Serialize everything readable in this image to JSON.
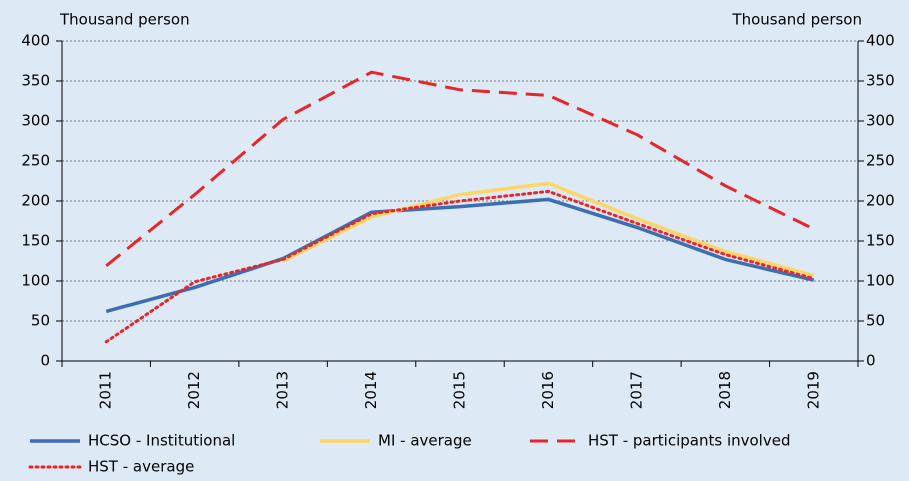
{
  "chart_data": {
    "type": "line",
    "ylabel": "Thousand person",
    "y2label": "Thousand person",
    "categories": [
      "2011",
      "2012",
      "2013",
      "2014",
      "2015",
      "2016",
      "2017",
      "2018",
      "2019"
    ],
    "series": [
      {
        "name": "HCSO - Institutional",
        "color": "#3c6eb4",
        "style": "solid",
        "values": [
          62,
          92,
          128,
          186,
          193,
          202,
          167,
          127,
          101
        ]
      },
      {
        "name": "MI - average",
        "color": "#ffd666",
        "style": "solid",
        "values": [
          null,
          null,
          125,
          180,
          208,
          222,
          178,
          137,
          107
        ]
      },
      {
        "name": "HST - participants involved",
        "color": "#e8262a",
        "style": "dashed",
        "values": [
          119,
          208,
          302,
          361,
          339,
          332,
          283,
          219,
          165
        ]
      },
      {
        "name": "HST - average",
        "color": "#e8262a",
        "style": "dotted",
        "values": [
          24,
          99,
          127,
          184,
          200,
          212,
          172,
          133,
          103
        ]
      }
    ],
    "ylim": [
      0,
      400
    ],
    "yticks": [
      0,
      50,
      100,
      150,
      200,
      250,
      300,
      350,
      400
    ],
    "y2lim": [
      0,
      400
    ],
    "y2ticks": [
      0,
      50,
      100,
      150,
      200,
      250,
      300,
      350,
      400
    ],
    "grid": true,
    "legend": "bottom"
  }
}
